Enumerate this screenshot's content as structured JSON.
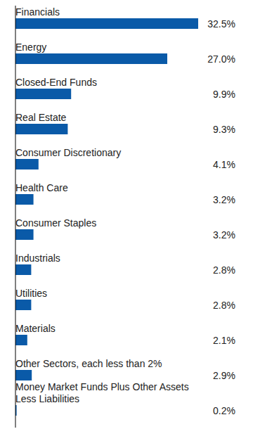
{
  "chart_data": {
    "type": "bar",
    "orientation": "horizontal",
    "categories": [
      "Financials",
      "Energy",
      "Closed-End Funds",
      "Real Estate",
      "Consumer Discretionary",
      "Health Care",
      "Consumer Staples",
      "Industrials",
      "Utilities",
      "Materials",
      "Other Sectors, each less than 2%",
      "Money Market Funds Plus Other Assets Less Liabilities"
    ],
    "values": [
      32.5,
      27.0,
      9.9,
      9.3,
      4.1,
      3.2,
      3.2,
      2.8,
      2.8,
      2.1,
      2.9,
      0.2
    ],
    "value_labels": [
      "32.5%",
      "27.0%",
      "9.9%",
      "9.3%",
      "4.1%",
      "3.2%",
      "3.2%",
      "2.8%",
      "2.8%",
      "2.1%",
      "2.9%",
      "0.2%"
    ],
    "color": "#0a5aa8",
    "xlim": [
      0,
      32.5
    ],
    "data_labels": true,
    "tick_labels": false,
    "grid": false
  }
}
